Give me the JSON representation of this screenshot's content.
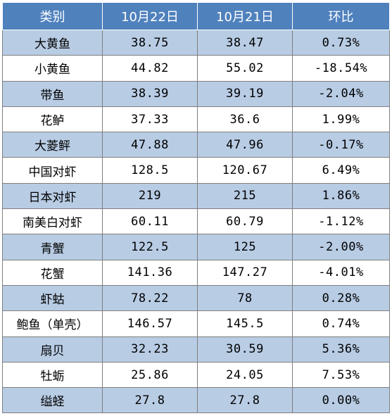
{
  "table": {
    "header": [
      "类别",
      "10月22日",
      "10月21日",
      "环比"
    ],
    "rows": [
      [
        "大黄鱼",
        "38.75",
        "38.47",
        "0.73%"
      ],
      [
        "小黄鱼",
        "44.82",
        "55.02",
        "-18.54%"
      ],
      [
        "带鱼",
        "38.39",
        "39.19",
        "-2.04%"
      ],
      [
        "花鲈",
        "37.33",
        "36.6",
        "1.99%"
      ],
      [
        "大菱鲆",
        "47.88",
        "47.96",
        "-0.17%"
      ],
      [
        "中国对虾",
        "128.5",
        "120.67",
        "6.49%"
      ],
      [
        "日本对虾",
        "219",
        "215",
        "1.86%"
      ],
      [
        "南美白对虾",
        "60.11",
        "60.79",
        "-1.12%"
      ],
      [
        "青蟹",
        "122.5",
        "125",
        "-2.00%"
      ],
      [
        "花蟹",
        "141.36",
        "147.27",
        "-4.01%"
      ],
      [
        "虾蛄",
        "78.22",
        "78",
        "0.28%"
      ],
      [
        "鲍鱼（单壳）",
        "146.57",
        "145.5",
        "0.74%"
      ],
      [
        "扇贝",
        "32.23",
        "30.59",
        "5.36%"
      ],
      [
        "牡蛎",
        "25.86",
        "24.05",
        "7.53%"
      ],
      [
        "缢蛏",
        "27.8",
        "27.8",
        "0.00%"
      ]
    ]
  }
}
